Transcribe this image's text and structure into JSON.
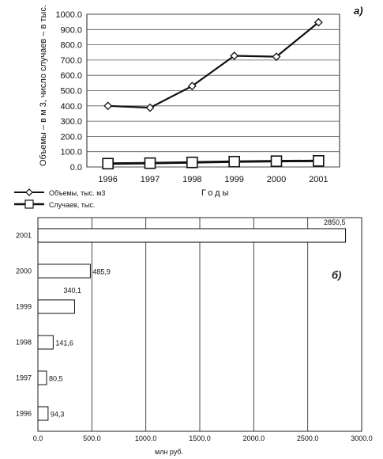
{
  "chart_data": [
    {
      "type": "line",
      "panel_label": "а)",
      "ylabel": "Объемы – в м 3, число случаев – в тыс.",
      "xlabel": "Годы",
      "ylim": [
        0,
        1000
      ],
      "yticks": [
        "0.0",
        "100.0",
        "200.0",
        "300.0",
        "400.0",
        "500.0",
        "600.0",
        "700.0",
        "800.0",
        "900.0",
        "1000.0"
      ],
      "x": [
        "1996",
        "1997",
        "1998",
        "1999",
        "2000",
        "2001"
      ],
      "grid": true,
      "legend_position": "bottom-left",
      "series": [
        {
          "name": "Объемы, тыс. м3",
          "marker": "diamond",
          "values": [
            400,
            388,
            530,
            728,
            722,
            947
          ]
        },
        {
          "name": "Случаев, тыс.",
          "marker": "square",
          "values": [
            22,
            25,
            30,
            35,
            38,
            40
          ]
        }
      ]
    },
    {
      "type": "bar",
      "orientation": "horizontal",
      "panel_label": "б)",
      "xlabel": "млн руб.",
      "xlim": [
        0,
        3000
      ],
      "xticks": [
        "0.0",
        "500.0",
        "1000.0",
        "1500.0",
        "2000.0",
        "2500.0",
        "3000.0"
      ],
      "grid": true,
      "categories": [
        "2001",
        "2000",
        "1999",
        "1998",
        "1997",
        "1996"
      ],
      "values": [
        2850.5,
        485.9,
        340.1,
        141.6,
        80.5,
        94.3
      ],
      "data_labels": [
        "2850,5",
        "485,9",
        "340,1",
        "141,6",
        "80,5",
        "94,3"
      ]
    }
  ]
}
